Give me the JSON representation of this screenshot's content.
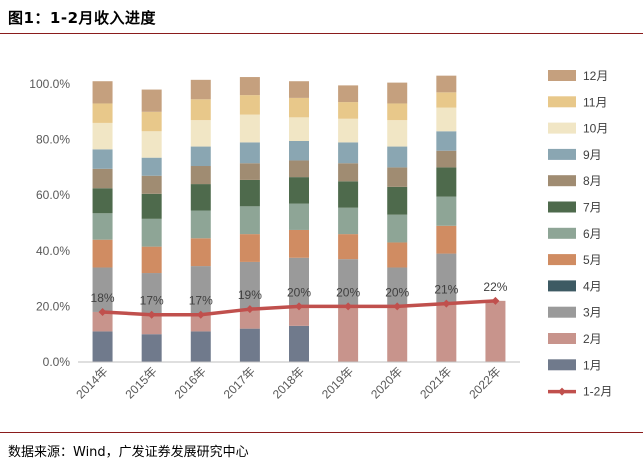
{
  "header": {
    "title": "图1：1-2月收入进度"
  },
  "footer": {
    "source": "数据来源：Wind，广发证券发展研究中心"
  },
  "chart_data": {
    "type": "bar",
    "stacked": true,
    "title": "图1：1-2月收入进度",
    "categories": [
      "2014年",
      "2015年",
      "2016年",
      "2017年",
      "2018年",
      "2019年",
      "2020年",
      "2021年",
      "2022年"
    ],
    "ylim": [
      0,
      100
    ],
    "yticks": [
      "0.0%",
      "20.0%",
      "40.0%",
      "60.0%",
      "80.0%",
      "100.0%"
    ],
    "grid": false,
    "legend_position": "right",
    "series": [
      {
        "name": "1月",
        "color": "#707a8c",
        "values": [
          11,
          10,
          11,
          12,
          13,
          null,
          null,
          null,
          null
        ]
      },
      {
        "name": "2月",
        "color": "#c8948c",
        "values": [
          7,
          7,
          6.5,
          7,
          7,
          20,
          20,
          21,
          22
        ]
      },
      {
        "name": "3月",
        "color": "#9a9a9a",
        "values": [
          16,
          15,
          17,
          17,
          17.5,
          17,
          14,
          18,
          null
        ]
      },
      {
        "name": "4月",
        "color": "#3d5a63",
        "values": [
          null,
          null,
          null,
          null,
          null,
          null,
          null,
          null,
          null
        ]
      },
      {
        "name": "5月",
        "color": "#d08c62",
        "values": [
          10,
          9.5,
          10,
          10,
          10,
          9,
          9,
          10,
          null
        ]
      },
      {
        "name": "6月",
        "color": "#8ea596",
        "values": [
          9.5,
          10,
          10,
          10,
          9.5,
          9.5,
          10,
          10.5,
          null
        ]
      },
      {
        "name": "7月",
        "color": "#4e6a4c",
        "values": [
          9,
          9,
          9.5,
          9.5,
          9.5,
          9.5,
          10,
          10.5,
          null
        ]
      },
      {
        "name": "8月",
        "color": "#a08c72",
        "values": [
          7,
          6.5,
          6.5,
          6,
          6,
          6.5,
          7,
          6,
          null
        ]
      },
      {
        "name": "9月",
        "color": "#8aa6b2",
        "values": [
          7,
          6.5,
          7,
          7.5,
          7,
          7.5,
          7.5,
          7,
          null
        ]
      },
      {
        "name": "10月",
        "color": "#f1e6c5",
        "values": [
          9.5,
          9.5,
          9.5,
          10,
          8.5,
          8.5,
          9.5,
          8.5,
          null
        ]
      },
      {
        "name": "11月",
        "color": "#e8c88a",
        "values": [
          7,
          7,
          7.5,
          7,
          7,
          6,
          6,
          5.5,
          null
        ]
      },
      {
        "name": "12月",
        "color": "#c5a07e",
        "values": [
          8,
          8,
          7,
          6.5,
          6,
          6,
          7.5,
          6,
          null
        ]
      }
    ],
    "line_series": {
      "name": "1-2月",
      "color": "#c0504d",
      "values": [
        18,
        17,
        17,
        19,
        20,
        20,
        20,
        21,
        22
      ],
      "labels": [
        "18%",
        "17%",
        "17%",
        "19%",
        "20%",
        "20%",
        "20%",
        "21%",
        "22%"
      ]
    }
  }
}
